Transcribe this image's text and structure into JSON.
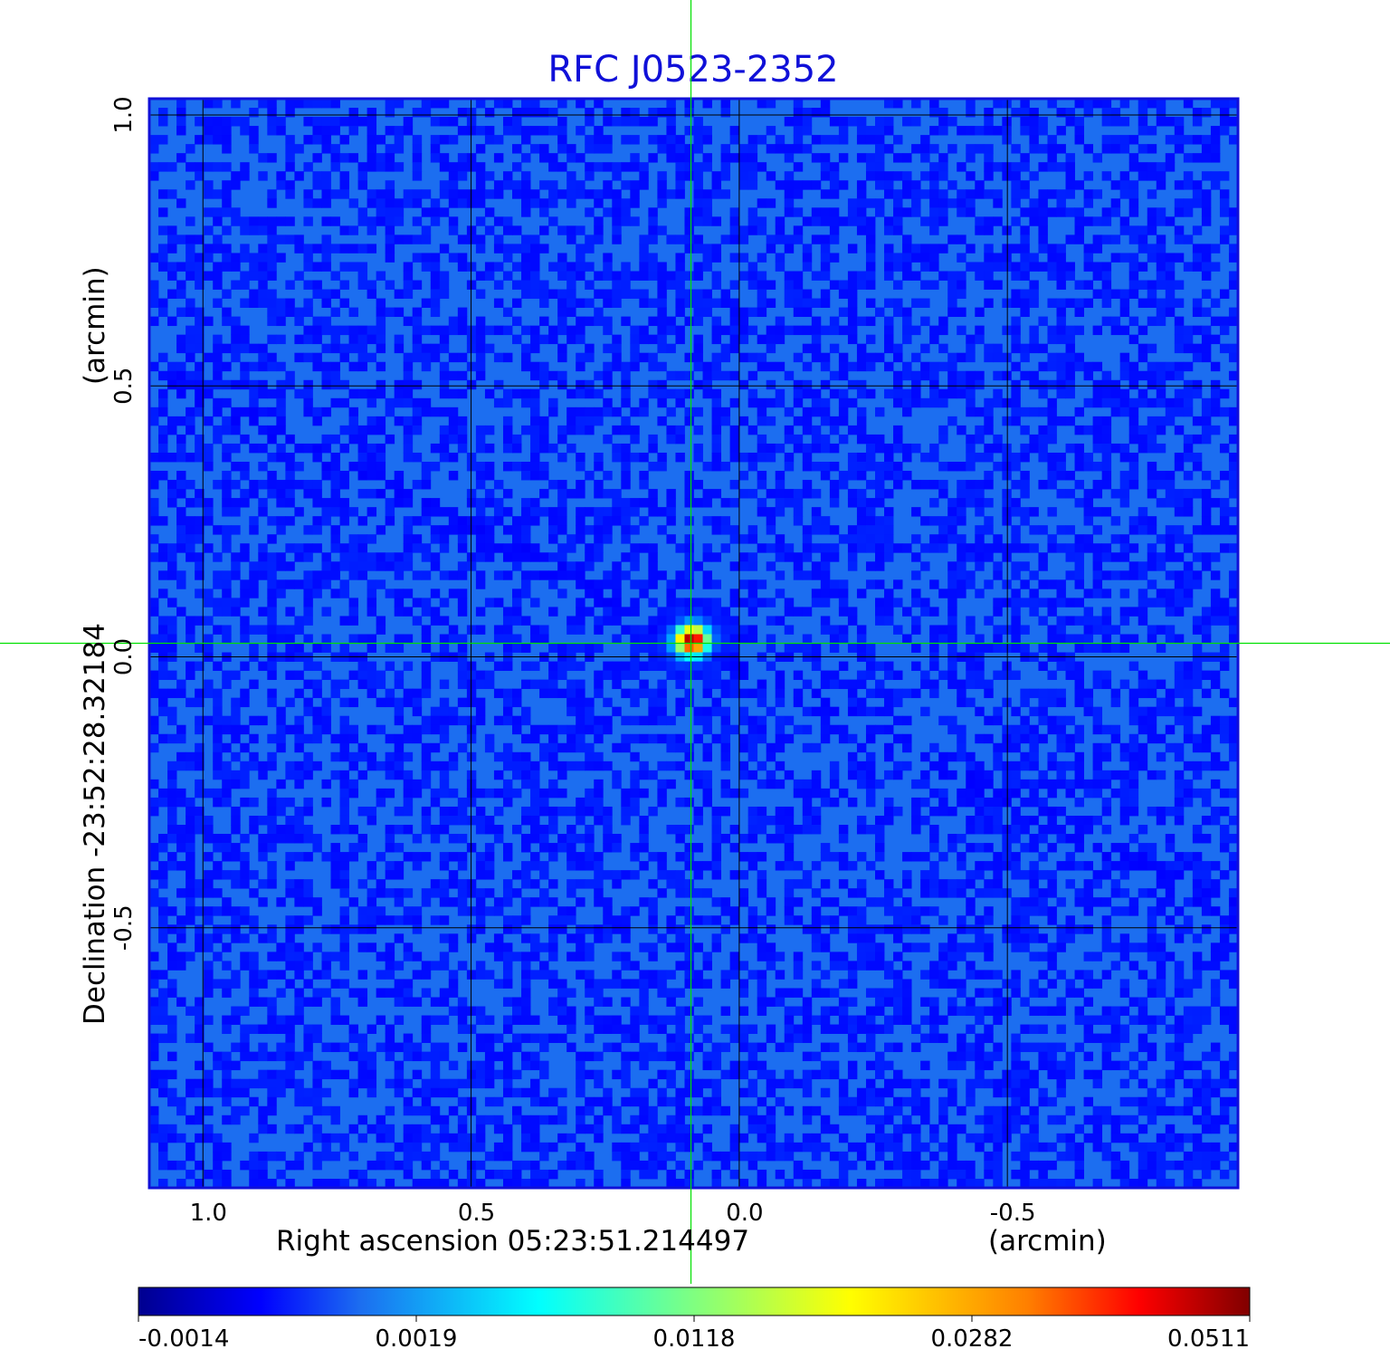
{
  "chart_data": {
    "type": "heatmap",
    "title": "RFC J0523-2352",
    "colormap": "jet",
    "x_axis": {
      "label": "Right ascension  05:23:51.214497",
      "unit_label": "(arcmin)",
      "ticks": [
        {
          "value": 1.0,
          "label": "1.0"
        },
        {
          "value": 0.5,
          "label": "0.5"
        },
        {
          "value": 0.0,
          "label": "0.0"
        },
        {
          "value": -0.5,
          "label": "-0.5"
        }
      ],
      "range": [
        1.1,
        -0.93
      ],
      "reversed": true
    },
    "y_axis": {
      "label": "Declination  -23:52:28.32184",
      "unit_label": "(arcmin)",
      "ticks": [
        {
          "value": 1.0,
          "label": "1.0"
        },
        {
          "value": 0.5,
          "label": "0.5"
        },
        {
          "value": 0.0,
          "label": "0.0"
        },
        {
          "value": -0.5,
          "label": "-0.5"
        }
      ],
      "range": [
        -0.98,
        1.03
      ]
    },
    "grid": true,
    "crosshair": {
      "x": 0.09,
      "y": 0.025,
      "color": "#00e000"
    },
    "source": {
      "x": 0.088,
      "y": 0.03,
      "peak": 0.0511,
      "description": "compact bright source near image centre"
    },
    "colorbar": {
      "orientation": "horizontal",
      "position": "bottom",
      "tick_labels": [
        "-0.0014",
        "0.0019",
        "0.0118",
        "0.0282",
        "0.0511"
      ],
      "min": -0.0014,
      "max": 0.0511
    },
    "background_level": -0.0002
  },
  "colors": {
    "title": "#1010d8",
    "frame": "#1010d8",
    "crosshair": "#00e000",
    "grid": "#000000",
    "background_pixel": "#1c6ef0"
  }
}
